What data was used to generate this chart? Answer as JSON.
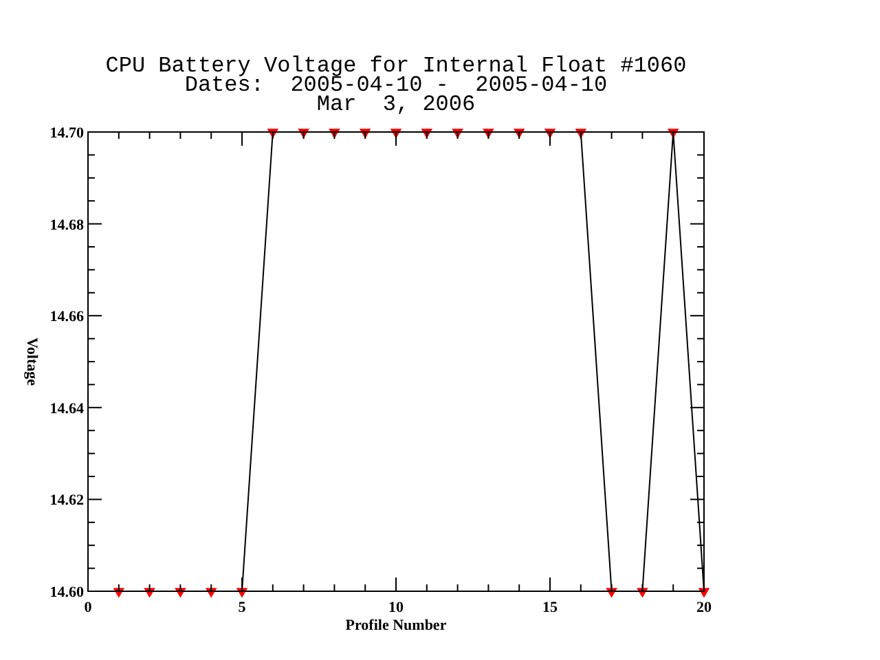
{
  "chart_data": {
    "type": "line",
    "title": "CPU Battery Voltage for Internal Float #1060",
    "subtitle": "Dates:  2005-04-10 -  2005-04-10",
    "annotations": [
      "Mar  3, 2006"
    ],
    "xlabel": "Profile Number",
    "ylabel": "Voltage",
    "x": [
      1,
      2,
      3,
      4,
      5,
      6,
      7,
      8,
      9,
      10,
      11,
      12,
      13,
      14,
      15,
      16,
      17,
      18,
      19,
      20
    ],
    "series": [
      {
        "color": "#000000",
        "colors": [
          "#ff0000",
          "#ff0000",
          "#ff0000",
          "#ff0000",
          "#ff0000",
          "#ff0000",
          "#ff0000",
          "#ff0000",
          "#ff0000",
          "#ff0000",
          "#ff0000",
          "#ff0000",
          "#ff0000",
          "#ff0000",
          "#ff0000",
          "#ff0000",
          "#ff0000",
          "#ff0000",
          "#ff0000",
          "#ff0000"
        ],
        "values": [
          14.6,
          14.6,
          14.6,
          14.6,
          14.6,
          14.7,
          14.7,
          14.7,
          14.7,
          14.7,
          14.7,
          14.7,
          14.7,
          14.7,
          14.7,
          14.7,
          14.6,
          14.6,
          14.7,
          14.6
        ]
      }
    ],
    "marker": "triangle",
    "line_style": "solid",
    "grid": false,
    "xlim": [
      0,
      20
    ],
    "xticks": [
      0,
      {
        "value": 1,
        "label": null
      },
      {
        "value": 2,
        "label": null
      },
      {
        "value": 3,
        "label": null
      },
      {
        "value": 4,
        "label": null
      },
      5,
      {
        "value": 6,
        "label": null
      },
      {
        "value": 7,
        "label": null
      },
      {
        "value": 8,
        "label": null
      },
      {
        "value": 9,
        "label": null
      },
      10,
      {
        "value": 11,
        "label": null
      },
      {
        "value": 12,
        "label": null
      },
      {
        "value": 13,
        "label": null
      },
      {
        "value": 14,
        "label": null
      },
      15,
      {
        "value": 16,
        "label": null
      },
      {
        "value": 17,
        "label": null
      },
      {
        "value": 18,
        "label": null
      },
      {
        "value": 19,
        "label": null
      },
      20
    ],
    "ylim": [
      14.6,
      14.7
    ],
    "yticks": [
      {
        "value": 14.6,
        "label": "14.60"
      },
      {
        "value": 14.605,
        "label": null
      },
      {
        "value": 14.61,
        "label": null
      },
      {
        "value": 14.615,
        "label": null
      },
      {
        "value": 14.62,
        "label": "14.62"
      },
      {
        "value": 14.625,
        "label": null
      },
      {
        "value": 14.63,
        "label": null
      },
      {
        "value": 14.635,
        "label": null
      },
      {
        "value": 14.64,
        "label": "14.64"
      },
      {
        "value": 14.645,
        "label": null
      },
      {
        "value": 14.65,
        "label": null
      },
      {
        "value": 14.655,
        "label": null
      },
      {
        "value": 14.66,
        "label": "14.66"
      },
      {
        "value": 14.665,
        "label": null
      },
      {
        "value": 14.67,
        "label": null
      },
      {
        "value": 14.675,
        "label": null
      },
      {
        "value": 14.68,
        "label": "14.68"
      },
      {
        "value": 14.685,
        "label": null
      },
      {
        "value": 14.69,
        "label": null
      },
      {
        "value": 14.695,
        "label": null
      },
      {
        "value": 14.7,
        "label": "14.70"
      }
    ]
  }
}
